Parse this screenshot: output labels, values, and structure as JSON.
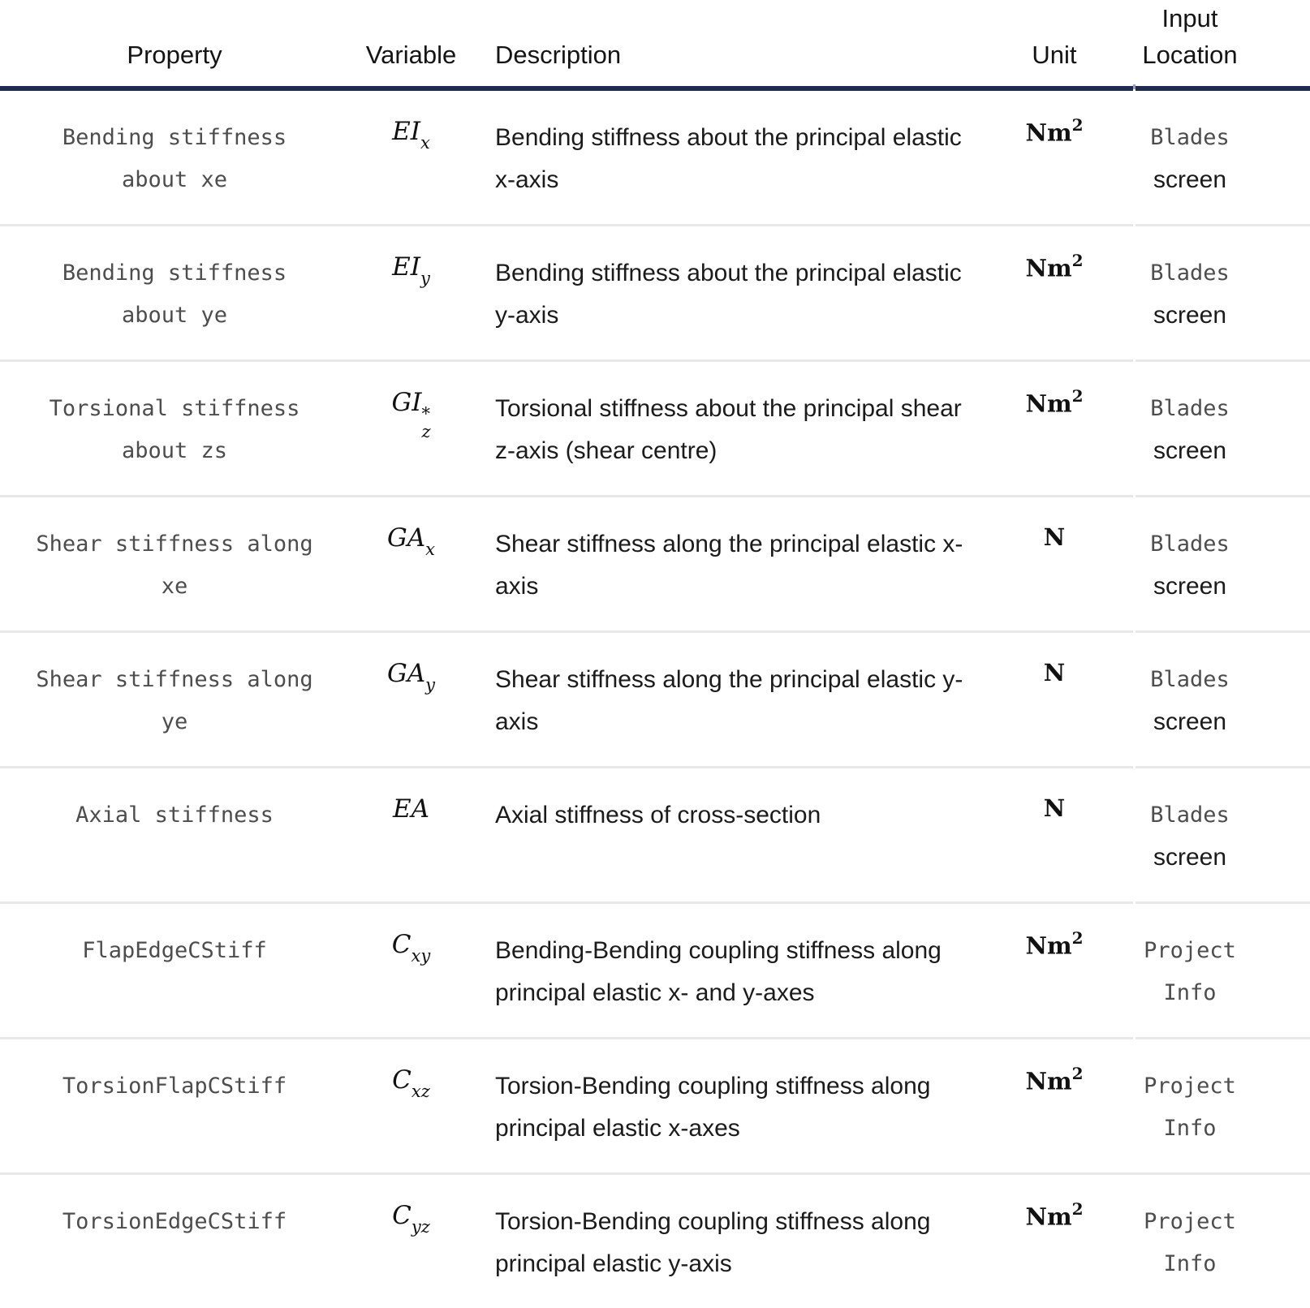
{
  "colors": {
    "header_rule": "#1f2b50",
    "row_separator": "#e8e8e8",
    "code_text": "#4d4d4d",
    "body_text": "#1b1b1b"
  },
  "table": {
    "columns": {
      "property": "Property",
      "variable": "Variable",
      "description": "Description",
      "unit": "Unit",
      "input_location": "Input Location"
    },
    "rows": [
      {
        "property": "Bending stiffness about xe",
        "variable": {
          "base": "EI",
          "sup": "",
          "sub": "x"
        },
        "description": "Bending stiffness about the principal elastic x-axis",
        "unit": {
          "base": "Nm",
          "sup": "2"
        },
        "location": {
          "line1": "Blades",
          "line2": "screen"
        }
      },
      {
        "property": "Bending stiffness about ye",
        "variable": {
          "base": "EI",
          "sup": "",
          "sub": "y"
        },
        "description": "Bending stiffness about the principal elastic y-axis",
        "unit": {
          "base": "Nm",
          "sup": "2"
        },
        "location": {
          "line1": "Blades",
          "line2": "screen"
        }
      },
      {
        "property": "Torsional stiffness about zs",
        "variable": {
          "base": "GI",
          "sup": "*",
          "sub": "z"
        },
        "description": "Torsional stiffness about the principal shear z-axis (shear centre)",
        "unit": {
          "base": "Nm",
          "sup": "2"
        },
        "location": {
          "line1": "Blades",
          "line2": "screen"
        }
      },
      {
        "property": "Shear stiffness along xe",
        "variable": {
          "base": "GA",
          "sup": "",
          "sub": "x"
        },
        "description": "Shear stiffness along the principal elastic x-axis",
        "unit": {
          "base": "N",
          "sup": ""
        },
        "location": {
          "line1": "Blades",
          "line2": "screen"
        }
      },
      {
        "property": "Shear stiffness along ye",
        "variable": {
          "base": "GA",
          "sup": "",
          "sub": "y"
        },
        "description": "Shear stiffness along the principal elastic y-axis",
        "unit": {
          "base": "N",
          "sup": ""
        },
        "location": {
          "line1": "Blades",
          "line2": "screen"
        }
      },
      {
        "property": "Axial stiffness",
        "variable": {
          "base": "EA",
          "sup": "",
          "sub": ""
        },
        "description": "Axial stiffness of cross-section",
        "unit": {
          "base": "N",
          "sup": ""
        },
        "location": {
          "line1": "Blades",
          "line2": "screen"
        }
      },
      {
        "property": "FlapEdgeCStiff",
        "variable": {
          "base": "C",
          "sup": "",
          "sub": "xy"
        },
        "description": "Bending-Bending coupling stiffness along principal elastic x- and y-axes",
        "unit": {
          "base": "Nm",
          "sup": "2"
        },
        "location": {
          "line1": "Project",
          "line2": "Info"
        }
      },
      {
        "property": "TorsionFlapCStiff",
        "variable": {
          "base": "C",
          "sup": "",
          "sub": "xz"
        },
        "description": "Torsion-Bending coupling stiffness along principal elastic x-axes",
        "unit": {
          "base": "Nm",
          "sup": "2"
        },
        "location": {
          "line1": "Project",
          "line2": "Info"
        }
      },
      {
        "property": "TorsionEdgeCStiff",
        "variable": {
          "base": "C",
          "sup": "",
          "sub": "yz"
        },
        "description": "Torsion-Bending coupling stiffness along principal elastic y-axis",
        "unit": {
          "base": "Nm",
          "sup": "2"
        },
        "location": {
          "line1": "Project",
          "line2": "Info"
        }
      }
    ]
  }
}
